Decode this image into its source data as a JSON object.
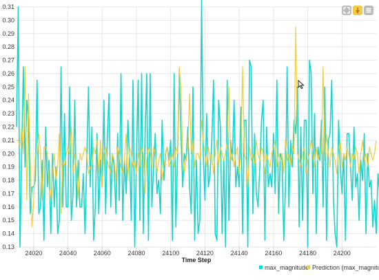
{
  "toolbar": {
    "icons": [
      "zoom-reset-icon",
      "export-icon",
      "menu-icon"
    ],
    "colors": {
      "neutral": "#bdbdbd",
      "accent": "#f2c94c"
    }
  },
  "chart_data": {
    "type": "line",
    "xlabel": "Time Step",
    "ylabel": "",
    "title": "",
    "xlim": [
      24010,
      24220
    ],
    "ylim": [
      0.13,
      0.31
    ],
    "x_ticks": [
      24020,
      24040,
      24060,
      24080,
      24100,
      24120,
      24140,
      24160,
      24180,
      24200
    ],
    "y_ticks": [
      0.13,
      0.14,
      0.15,
      0.16,
      0.17,
      0.18,
      0.19,
      0.2,
      0.21,
      0.22,
      0.23,
      0.24,
      0.25,
      0.26,
      0.27,
      0.28,
      0.29,
      0.3,
      0.31
    ],
    "grid": true,
    "legend_position": "bottom-right",
    "series": [
      {
        "name": "max_magnitude",
        "color": "#17d4cf",
        "x_start": 24010,
        "x_step": 1,
        "values": [
          0.22,
          0.31,
          0.13,
          0.2,
          0.265,
          0.19,
          0.24,
          0.225,
          0.155,
          0.175,
          0.175,
          0.18,
          0.255,
          0.155,
          0.16,
          0.195,
          0.135,
          0.22,
          0.175,
          0.195,
          0.14,
          0.2,
          0.16,
          0.19,
          0.14,
          0.15,
          0.265,
          0.16,
          0.23,
          0.16,
          0.16,
          0.25,
          0.15,
          0.17,
          0.24,
          0.16,
          0.195,
          0.16,
          0.16,
          0.185,
          0.14,
          0.195,
          0.25,
          0.175,
          0.22,
          0.135,
          0.16,
          0.215,
          0.155,
          0.195,
          0.175,
          0.24,
          0.155,
          0.21,
          0.245,
          0.16,
          0.2,
          0.19,
          0.155,
          0.215,
          0.165,
          0.26,
          0.15,
          0.195,
          0.17,
          0.225,
          0.195,
          0.15,
          0.255,
          0.13,
          0.195,
          0.255,
          0.15,
          0.26,
          0.14,
          0.21,
          0.26,
          0.135,
          0.26,
          0.16,
          0.19,
          0.215,
          0.17,
          0.18,
          0.155,
          0.225,
          0.18,
          0.2,
          0.205,
          0.195,
          0.21,
          0.135,
          0.26,
          0.145,
          0.2,
          0.26,
          0.215,
          0.175,
          0.2,
          0.195,
          0.22,
          0.175,
          0.155,
          0.25,
          0.135,
          0.195,
          0.14,
          0.15,
          0.315,
          0.2,
          0.165,
          0.23,
          0.175,
          0.185,
          0.21,
          0.255,
          0.14,
          0.135,
          0.24,
          0.22,
          0.14,
          0.195,
          0.13,
          0.255,
          0.15,
          0.21,
          0.195,
          0.24,
          0.175,
          0.19,
          0.175,
          0.235,
          0.14,
          0.225,
          0.225,
          0.13,
          0.27,
          0.265,
          0.155,
          0.215,
          0.17,
          0.16,
          0.19,
          0.225,
          0.24,
          0.135,
          0.22,
          0.175,
          0.185,
          0.175,
          0.215,
          0.17,
          0.255,
          0.155,
          0.2,
          0.195,
          0.135,
          0.175,
          0.265,
          0.16,
          0.21,
          0.19,
          0.225,
          0.215,
          0.25,
          0.145,
          0.22,
          0.15,
          0.225,
          0.225,
          0.13,
          0.27,
          0.26,
          0.17,
          0.23,
          0.14,
          0.205,
          0.195,
          0.225,
          0.16,
          0.25,
          0.135,
          0.21,
          0.215,
          0.255,
          0.165,
          0.14,
          0.13,
          0.225,
          0.19,
          0.17,
          0.2,
          0.135,
          0.215,
          0.215,
          0.19,
          0.165,
          0.22,
          0.175,
          0.185,
          0.15,
          0.195,
          0.18,
          0.215,
          0.14,
          0.2,
          0.175,
          0.18,
          0.145,
          0.165,
          0.14,
          0.185,
          0.17,
          0.21,
          0.18,
          0.15,
          0.195,
          0.21
        ]
      },
      {
        "name": "Prediction (max_magnitude)",
        "color": "#f0cc3a",
        "x_start": 24010,
        "x_step": 1,
        "values": [
          0.21,
          0.21,
          0.205,
          0.22,
          0.2,
          0.265,
          0.165,
          0.245,
          0.2,
          0.145,
          0.165,
          0.2,
          0.2,
          0.215,
          0.2,
          0.165,
          0.205,
          0.205,
          0.2,
          0.175,
          0.165,
          0.185,
          0.2,
          0.18,
          0.19,
          0.215,
          0.155,
          0.195,
          0.19,
          0.2,
          0.205,
          0.2,
          0.22,
          0.185,
          0.2,
          0.19,
          0.165,
          0.2,
          0.195,
          0.2,
          0.205,
          0.2,
          0.185,
          0.19,
          0.19,
          0.205,
          0.2,
          0.21,
          0.185,
          0.21,
          0.175,
          0.2,
          0.205,
          0.195,
          0.19,
          0.185,
          0.2,
          0.195,
          0.18,
          0.205,
          0.2,
          0.19,
          0.185,
          0.195,
          0.215,
          0.18,
          0.205,
          0.2,
          0.19,
          0.195,
          0.185,
          0.2,
          0.19,
          0.205,
          0.2,
          0.17,
          0.195,
          0.205,
          0.2,
          0.19,
          0.205,
          0.2,
          0.185,
          0.195,
          0.2,
          0.18,
          0.19,
          0.2,
          0.205,
          0.19,
          0.195,
          0.2,
          0.19,
          0.205,
          0.2,
          0.265,
          0.25,
          0.2,
          0.185,
          0.195,
          0.205,
          0.245,
          0.2,
          0.21,
          0.19,
          0.2,
          0.2,
          0.195,
          0.225,
          0.21,
          0.2,
          0.19,
          0.205,
          0.195,
          0.2,
          0.185,
          0.2,
          0.21,
          0.19,
          0.205,
          0.2,
          0.195,
          0.2,
          0.21,
          0.25,
          0.195,
          0.2,
          0.19,
          0.2,
          0.205,
          0.185,
          0.2,
          0.265,
          0.2,
          0.195,
          0.175,
          0.205,
          0.195,
          0.2,
          0.19,
          0.21,
          0.2,
          0.195,
          0.205,
          0.2,
          0.185,
          0.2,
          0.195,
          0.19,
          0.2,
          0.205,
          0.21,
          0.19,
          0.2,
          0.195,
          0.2,
          0.185,
          0.21,
          0.195,
          0.2,
          0.19,
          0.205,
          0.2,
          0.295,
          0.2,
          0.195,
          0.19,
          0.2,
          0.205,
          0.185,
          0.195,
          0.2,
          0.21,
          0.2,
          0.19,
          0.205,
          0.195,
          0.2,
          0.2,
          0.265,
          0.195,
          0.215,
          0.2,
          0.19,
          0.205,
          0.2,
          0.195,
          0.185,
          0.2,
          0.21,
          0.19,
          0.2,
          0.195,
          0.205,
          0.2,
          0.19,
          0.2,
          0.195,
          0.205,
          0.2,
          0.185,
          0.2,
          0.21,
          0.195,
          0.2,
          0.19,
          0.205,
          0.2,
          0.195,
          0.2,
          0.21
        ]
      }
    ]
  }
}
